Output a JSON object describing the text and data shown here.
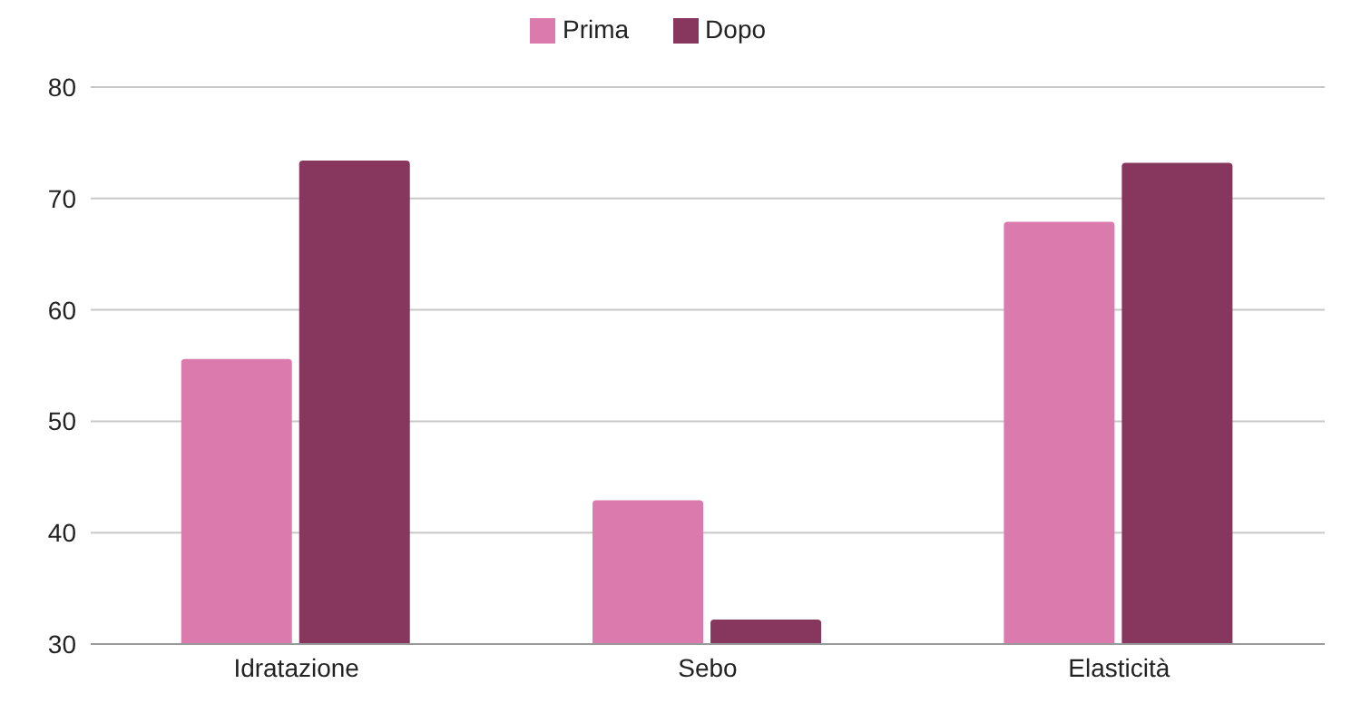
{
  "chart_data": {
    "type": "bar",
    "categories": [
      "Idratazione",
      "Sebo",
      "Elasticità"
    ],
    "series": [
      {
        "name": "Prima",
        "color": "#db7aad",
        "values": [
          55.6,
          42.9,
          67.9
        ]
      },
      {
        "name": "Dopo",
        "color": "#87365e",
        "values": [
          73.4,
          32.2,
          73.2
        ]
      }
    ],
    "ylim": [
      30,
      80
    ],
    "yticks": [
      30,
      40,
      50,
      60,
      70,
      80
    ],
    "grid": "y",
    "legend": "top"
  }
}
